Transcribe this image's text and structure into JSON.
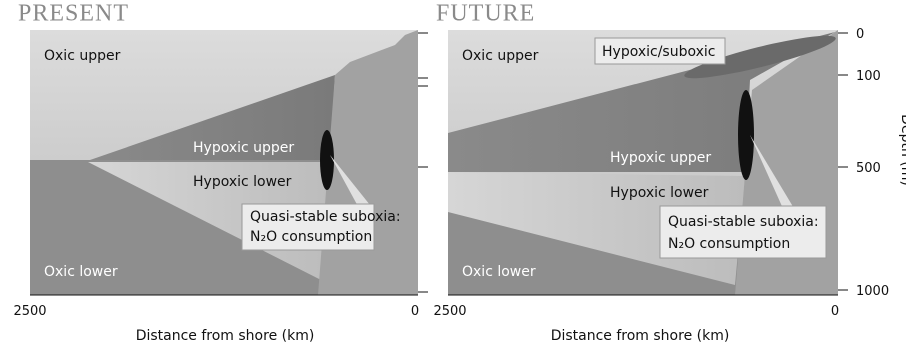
{
  "present": {
    "title": "PRESENT",
    "oxic_upper": "Oxic upper",
    "hypoxic_upper": "Hypoxic upper",
    "hypoxic_lower": "Hypoxic lower",
    "callout_line1": "Quasi-stable suboxia:",
    "callout_line2": "N₂O consumption",
    "oxic_lower": "Oxic lower",
    "x_start": "2500",
    "x_end": "0",
    "x_axis_title": "Distance from shore (km)"
  },
  "future": {
    "title": "FUTURE",
    "oxic_upper": "Oxic upper",
    "hypoxic_suboxic": "Hypoxic/suboxic",
    "hypoxic_upper": "Hypoxic upper",
    "hypoxic_lower": "Hypoxic lower",
    "callout_line1": "Quasi-stable suboxia:",
    "callout_line2": "N₂O consumption",
    "oxic_lower": "Oxic lower",
    "x_start": "2500",
    "x_end": "0",
    "x_axis_title": "Distance from shore (km)"
  },
  "depth_axis": {
    "title": "Depth (m)",
    "ticks": [
      "0",
      "100",
      "500",
      "1000"
    ]
  }
}
